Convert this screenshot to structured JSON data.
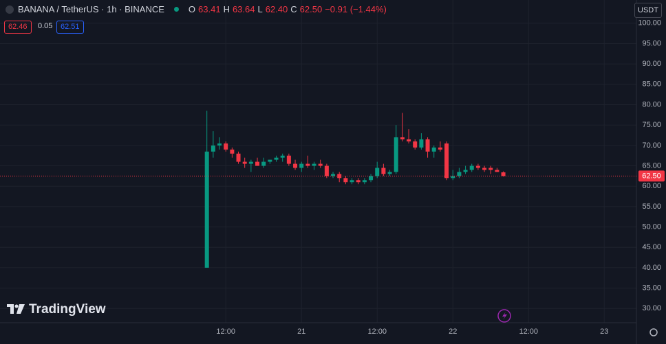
{
  "chart_data": {
    "type": "candlestick",
    "title": "BANANA / TetherUS · 1h · BINANCE",
    "header": {
      "o_label": "O",
      "o": "63.41",
      "h_label": "H",
      "h": "63.64",
      "l_label": "L",
      "l": "62.40",
      "c_label": "C",
      "c": "62.50",
      "change": "−0.91 (−1.44%)"
    },
    "bid": "62.46",
    "spread": "0.05",
    "ask": "62.51",
    "currency": "USDT",
    "brand": "TradingView",
    "up_color": "#089981",
    "down_color": "#f23645",
    "x": [
      -3,
      -2,
      -1,
      0,
      1,
      2,
      3,
      4,
      5,
      6,
      7,
      8,
      9,
      10,
      11,
      12,
      13,
      14,
      15,
      16,
      17,
      18,
      19,
      20,
      21,
      22,
      23,
      24,
      25,
      26,
      27,
      28,
      29,
      30,
      31,
      32,
      33,
      34,
      35,
      36,
      37,
      38,
      39,
      40,
      41,
      42,
      43,
      44
    ],
    "open": [
      40,
      68.5,
      70,
      70.5,
      69,
      68,
      66,
      65.5,
      66,
      65,
      66,
      66.5,
      67,
      67.5,
      65.5,
      64.5,
      65.5,
      65,
      65.5,
      65,
      62.5,
      63,
      62,
      61,
      61.5,
      61,
      61.5,
      62.5,
      64.5,
      63,
      63.5,
      72,
      71.5,
      71,
      69.5,
      71.5,
      68.5,
      69.5,
      70.5,
      62,
      62.5,
      63.5,
      64,
      65,
      64.5,
      64.5,
      64,
      63.41
    ],
    "high": [
      78.5,
      73.5,
      72,
      71,
      69.5,
      68.5,
      67,
      66.5,
      67,
      67,
      66.5,
      67.5,
      68,
      68,
      66.5,
      66,
      67.5,
      66,
      66.5,
      65.5,
      63.5,
      63.5,
      62.5,
      62,
      62,
      62,
      63,
      66,
      65.5,
      64,
      75,
      78,
      74,
      71.5,
      73,
      72,
      70,
      71,
      71,
      64,
      64.5,
      65,
      65.5,
      65.5,
      65,
      65,
      64.5,
      63.64
    ],
    "low": [
      40,
      67,
      69,
      68.5,
      67,
      65.5,
      64.5,
      63.5,
      65,
      64.5,
      65.5,
      66,
      66,
      65,
      64,
      63.5,
      64.5,
      64,
      64.5,
      62,
      62,
      61,
      60.5,
      60.5,
      60.5,
      60.5,
      61,
      62,
      62.5,
      62.5,
      63,
      71,
      70.5,
      69,
      69,
      67,
      67,
      68.5,
      61.5,
      61.5,
      62,
      63,
      63.5,
      64,
      63.5,
      63,
      63.5,
      62.4
    ],
    "close": [
      68.5,
      70,
      70.5,
      69,
      68,
      66,
      65.5,
      66,
      65,
      66,
      66.5,
      67,
      67.5,
      65.5,
      64.5,
      65.5,
      65,
      65.5,
      65,
      62.5,
      63,
      62,
      61,
      61.5,
      61,
      61.5,
      62.5,
      64.5,
      63,
      63.5,
      72,
      71.5,
      71,
      69.5,
      71.5,
      68.5,
      69.5,
      69,
      62,
      62.5,
      63.5,
      64,
      65,
      64.5,
      64,
      64,
      63.5,
      62.5
    ],
    "xlim": [
      -35.8,
      65.1
    ],
    "xticks": [
      {
        "value": 0,
        "label": "12:00"
      },
      {
        "value": 12,
        "label": "21"
      },
      {
        "value": 24,
        "label": "12:00"
      },
      {
        "value": 36,
        "label": "22"
      },
      {
        "value": 48,
        "label": "12:00"
      },
      {
        "value": 60,
        "label": "23"
      }
    ],
    "ylim": [
      26.5,
      105.7
    ],
    "yticks": [
      {
        "value": 30,
        "label": "30.00"
      },
      {
        "value": 35,
        "label": "35.00"
      },
      {
        "value": 40,
        "label": "40.00"
      },
      {
        "value": 45,
        "label": "45.00"
      },
      {
        "value": 50,
        "label": "50.00"
      },
      {
        "value": 55,
        "label": "55.00"
      },
      {
        "value": 60,
        "label": "60.00"
      },
      {
        "value": 65,
        "label": "65.00"
      },
      {
        "value": 70,
        "label": "70.00"
      },
      {
        "value": 75,
        "label": "75.00"
      },
      {
        "value": 80,
        "label": "80.00"
      },
      {
        "value": 85,
        "label": "85.00"
      },
      {
        "value": 90,
        "label": "90.00"
      },
      {
        "value": 95,
        "label": "95.00"
      },
      {
        "value": 100,
        "label": "100.00"
      }
    ],
    "last_price": {
      "value": 62.5,
      "label": "62.50"
    },
    "grid": true
  }
}
